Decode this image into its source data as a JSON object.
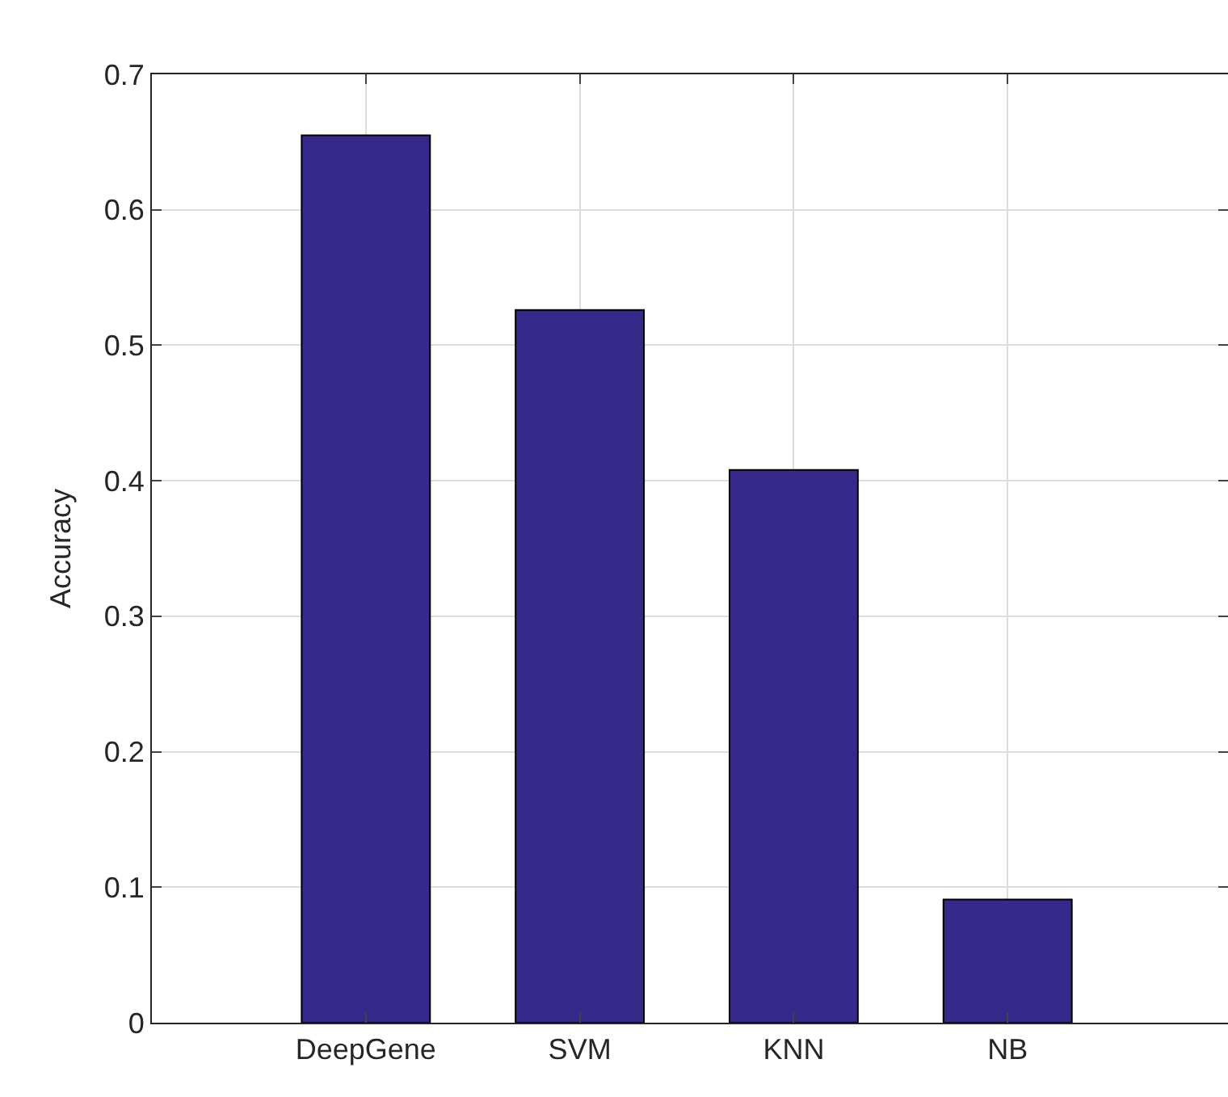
{
  "chart_data": {
    "type": "bar",
    "ylabel": "Accuracy",
    "categories": [
      "DeepGene",
      "SVM",
      "KNN",
      "NB"
    ],
    "values": [
      0.655,
      0.526,
      0.408,
      0.091
    ],
    "color": "#35298a",
    "ylim": [
      0,
      0.7
    ],
    "yticks": [
      0,
      0.1,
      0.2,
      0.3,
      0.4,
      0.5,
      0.6,
      0.7
    ],
    "grid": true
  }
}
